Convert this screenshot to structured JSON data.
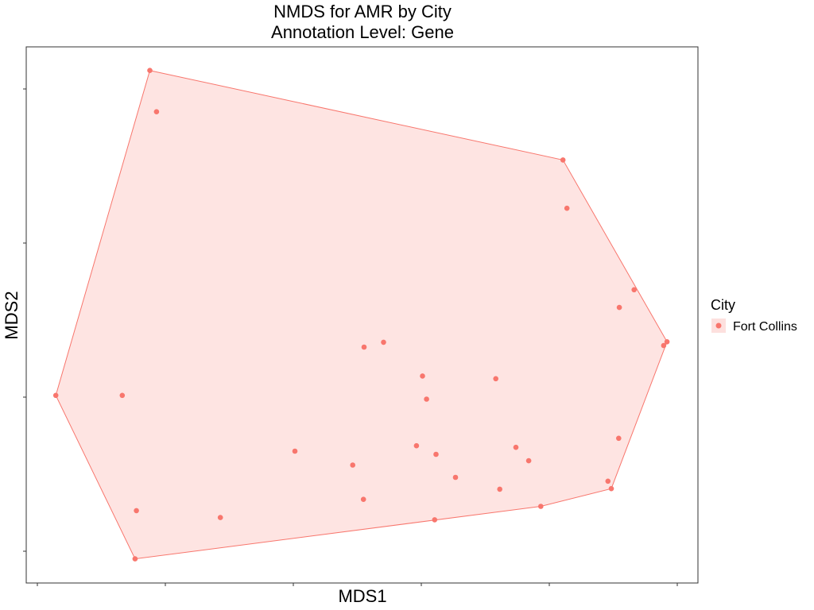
{
  "chart_data": {
    "type": "scatter",
    "title": "NMDS for AMR by City",
    "subtitle": "Annotation Level: Gene",
    "xlabel": "MDS1",
    "ylabel": "MDS2",
    "xlim": [
      0,
      100
    ],
    "ylim": [
      0,
      100
    ],
    "grid": false,
    "legend": {
      "title": "City",
      "position": "right",
      "entries": [
        "Fort Collins"
      ]
    },
    "point_color": "#F8766D",
    "hull_fill": "#F8766D",
    "hull_fill_opacity": 0.2,
    "series": [
      {
        "name": "Fort Collins",
        "points": [
          [
            18.4,
            95.6
          ],
          [
            19.4,
            87.9
          ],
          [
            79.9,
            78.9
          ],
          [
            80.5,
            69.9
          ],
          [
            90.5,
            54.7
          ],
          [
            88.3,
            51.4
          ],
          [
            95.4,
            45.0
          ],
          [
            94.9,
            44.3
          ],
          [
            50.3,
            44.0
          ],
          [
            53.2,
            44.9
          ],
          [
            59.0,
            38.6
          ],
          [
            69.9,
            38.1
          ],
          [
            59.6,
            34.3
          ],
          [
            4.4,
            35.0
          ],
          [
            14.3,
            35.0
          ],
          [
            88.2,
            27.0
          ],
          [
            72.9,
            25.3
          ],
          [
            58.1,
            25.6
          ],
          [
            61.0,
            24.0
          ],
          [
            40.0,
            24.6
          ],
          [
            48.6,
            22.0
          ],
          [
            74.8,
            22.8
          ],
          [
            63.9,
            19.7
          ],
          [
            86.6,
            19.0
          ],
          [
            87.1,
            17.6
          ],
          [
            70.5,
            17.5
          ],
          [
            50.2,
            15.6
          ],
          [
            16.4,
            13.5
          ],
          [
            28.9,
            12.2
          ],
          [
            60.8,
            11.8
          ],
          [
            76.6,
            14.3
          ],
          [
            16.2,
            4.5
          ]
        ]
      }
    ],
    "hull": [
      [
        18.4,
        95.6
      ],
      [
        79.9,
        78.9
      ],
      [
        95.4,
        45.0
      ],
      [
        87.1,
        17.6
      ],
      [
        76.6,
        14.3
      ],
      [
        16.2,
        4.5
      ],
      [
        4.4,
        35.0
      ]
    ]
  }
}
